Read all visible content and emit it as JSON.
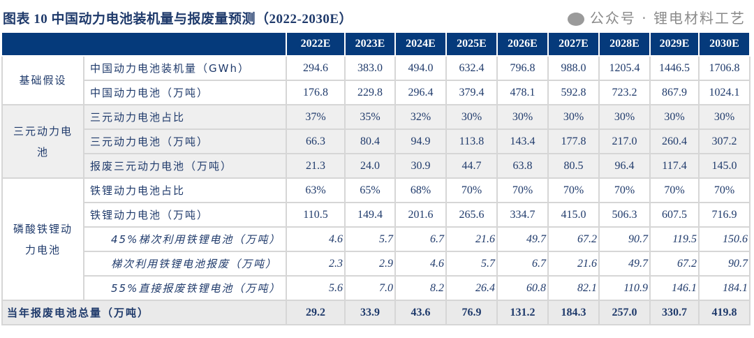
{
  "title": "图表 10  中国动力电池装机量与报废量预测（2022-2030E）",
  "years": [
    "2022E",
    "2023E",
    "2024E",
    "2025E",
    "2026E",
    "2027E",
    "2028E",
    "2029E",
    "2030E"
  ],
  "groups": [
    {
      "name": "基础假设",
      "rows": [
        {
          "label": "中国动力电池装机量（GWh）",
          "values": [
            "294.6",
            "383.0",
            "494.0",
            "632.4",
            "796.8",
            "988.0",
            "1205.4",
            "1446.5",
            "1706.8"
          ]
        },
        {
          "label": "中国动力电池（万吨）",
          "values": [
            "176.8",
            "229.8",
            "296.4",
            "379.4",
            "478.1",
            "592.8",
            "723.2",
            "867.9",
            "1024.1"
          ]
        }
      ]
    },
    {
      "name": "三元动力电池",
      "rows": [
        {
          "label": "三元动力电池占比",
          "values": [
            "37%",
            "35%",
            "32%",
            "30%",
            "30%",
            "30%",
            "30%",
            "30%",
            "30%"
          ]
        },
        {
          "label": "三元动力电池（万吨）",
          "values": [
            "66.3",
            "80.4",
            "94.9",
            "113.8",
            "143.4",
            "177.8",
            "217.0",
            "260.4",
            "307.2"
          ]
        },
        {
          "label": "报废三元动力电池（万吨）",
          "values": [
            "21.3",
            "24.0",
            "30.9",
            "44.7",
            "63.8",
            "80.5",
            "96.4",
            "117.4",
            "145.0"
          ]
        }
      ]
    },
    {
      "name": "磷酸铁锂动力电池",
      "rows": [
        {
          "label": "铁锂动力电池占比",
          "values": [
            "63%",
            "65%",
            "68%",
            "70%",
            "70%",
            "70%",
            "70%",
            "70%",
            "70%"
          ]
        },
        {
          "label": "铁锂动力电池（万吨）",
          "values": [
            "110.5",
            "149.4",
            "201.6",
            "265.6",
            "334.7",
            "415.0",
            "506.3",
            "607.5",
            "716.9"
          ]
        },
        {
          "label": "45%梯次利用铁锂电池（万吨）",
          "values": [
            "4.6",
            "5.7",
            "6.7",
            "21.6",
            "49.7",
            "67.2",
            "90.7",
            "119.5",
            "150.6"
          ]
        },
        {
          "label": "梯次利用铁锂电池报废（万吨）",
          "values": [
            "2.3",
            "2.9",
            "4.6",
            "5.7",
            "6.7",
            "21.6",
            "49.7",
            "67.2",
            "90.7"
          ]
        },
        {
          "label": "55%直接报废铁锂电池（万吨）",
          "values": [
            "5.6",
            "7.0",
            "8.2",
            "26.4",
            "60.8",
            "82.1",
            "110.9",
            "146.1",
            "184.1"
          ]
        }
      ]
    }
  ],
  "total": {
    "label": "当年报废电池总量（万吨）",
    "values": [
      "29.2",
      "33.9",
      "43.6",
      "76.9",
      "131.2",
      "184.3",
      "257.0",
      "330.7",
      "419.8"
    ]
  },
  "watermark": "公众号 · 锂电材料工艺",
  "colors": {
    "header_bg": "#053a7b",
    "text": "#1f3a6b",
    "shade": "#efefef"
  }
}
